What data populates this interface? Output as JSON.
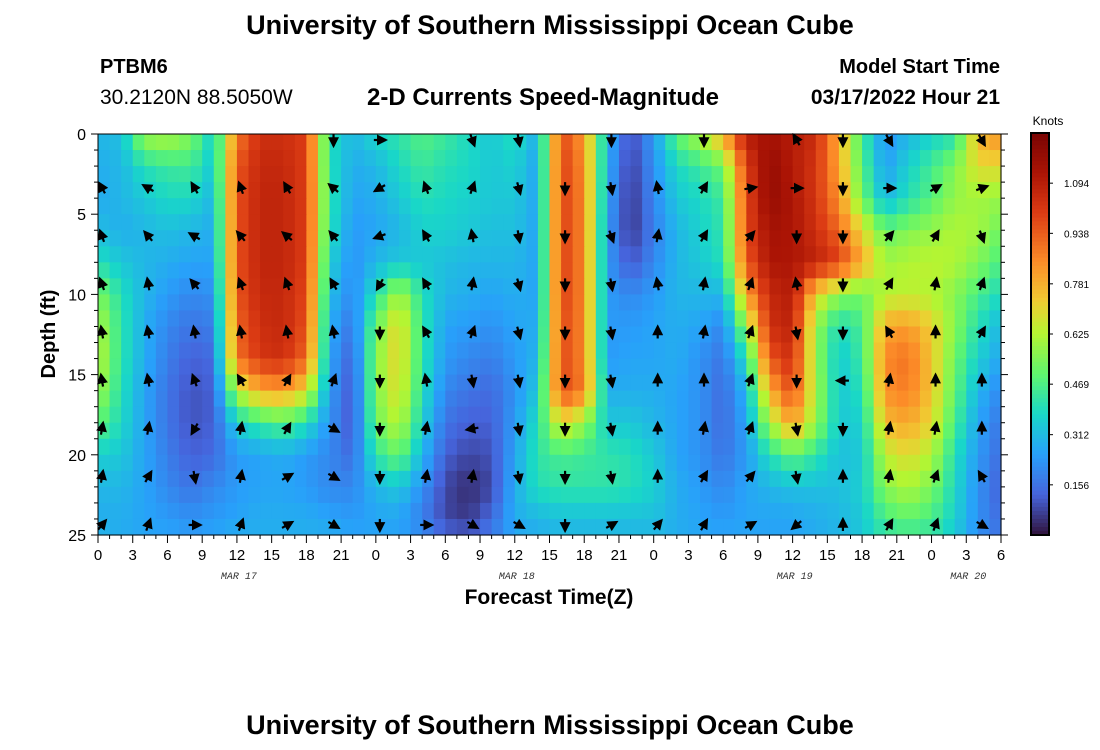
{
  "header": {
    "title": "University of Southern Mississippi Ocean Cube",
    "station_id": "PTBM6",
    "station_coords": "30.2120N  88.5050W",
    "subtitle": "2-D Currents Speed-Magnitude",
    "model_start_label": "Model Start Time",
    "model_start_value": "03/17/2022 Hour 21"
  },
  "footer": {
    "title": "University of Southern Mississippi Ocean Cube"
  },
  "chart_data": {
    "type": "heatmap",
    "title": "2-D Currents Speed-Magnitude",
    "xlabel": "Forecast Time(Z)",
    "ylabel": "Depth (ft)",
    "x_hours": [
      0,
      78
    ],
    "y_depth_ft": [
      0,
      25
    ],
    "y_ticks": [
      0,
      5,
      10,
      15,
      20,
      25
    ],
    "x_tick_labels": [
      "0",
      "3",
      "6",
      "9",
      "12",
      "15",
      "18",
      "21",
      "0",
      "3",
      "6",
      "9",
      "12",
      "15",
      "18",
      "21",
      "0",
      "3",
      "6",
      "9",
      "12",
      "15",
      "18",
      "21",
      "0",
      "3",
      "6"
    ],
    "date_labels": [
      {
        "label": "MAR 17",
        "hour": 12
      },
      {
        "label": "MAR 18",
        "hour": 36
      },
      {
        "label": "MAR 19",
        "hour": 60
      },
      {
        "label": "MAR 20",
        "hour": 75
      }
    ],
    "colorbar": {
      "unit": "Knots",
      "range": [
        0,
        1.25
      ],
      "ticks": [
        "0.156",
        "0.312",
        "0.469",
        "0.625",
        "0.781",
        "0.938",
        "1.094"
      ]
    },
    "speed_grid": {
      "depth_ft": [
        0,
        2,
        4,
        6,
        8,
        10,
        12,
        14,
        16,
        18,
        20,
        22,
        24,
        25
      ],
      "hours": [
        0,
        2,
        4,
        6,
        8,
        10,
        12,
        14,
        16,
        18,
        20,
        22,
        24,
        26,
        28,
        30,
        32,
        34,
        36,
        38,
        40,
        42,
        44,
        46,
        48,
        50,
        52,
        54,
        56,
        58,
        60,
        62,
        64,
        66,
        68,
        70,
        72,
        74,
        76,
        78
      ],
      "values": [
        [
          0.3,
          0.32,
          0.6,
          0.62,
          0.55,
          0.35,
          0.88,
          1.04,
          1.04,
          1.0,
          0.4,
          0.3,
          0.38,
          0.42,
          0.48,
          0.44,
          0.38,
          0.34,
          0.4,
          0.28,
          0.98,
          0.82,
          0.3,
          0.08,
          0.24,
          0.5,
          0.62,
          0.8,
          1.1,
          1.14,
          1.1,
          1.05,
          0.78,
          0.45,
          0.22,
          0.3,
          0.36,
          0.4,
          0.78,
          0.85
        ],
        [
          0.28,
          0.3,
          0.4,
          0.44,
          0.45,
          0.34,
          0.95,
          1.06,
          1.06,
          1.0,
          0.4,
          0.28,
          0.3,
          0.38,
          0.44,
          0.4,
          0.38,
          0.34,
          0.36,
          0.26,
          1.0,
          0.85,
          0.28,
          0.06,
          0.22,
          0.38,
          0.44,
          0.52,
          1.0,
          1.18,
          1.1,
          1.02,
          0.8,
          0.48,
          0.25,
          0.36,
          0.45,
          0.55,
          0.7,
          0.7
        ],
        [
          0.27,
          0.3,
          0.34,
          0.38,
          0.38,
          0.3,
          0.96,
          1.07,
          1.07,
          1.0,
          0.42,
          0.26,
          0.28,
          0.34,
          0.4,
          0.38,
          0.36,
          0.34,
          0.34,
          0.26,
          1.0,
          0.86,
          0.26,
          0.05,
          0.2,
          0.34,
          0.38,
          0.44,
          0.98,
          1.18,
          1.12,
          1.02,
          0.84,
          0.52,
          0.3,
          0.4,
          0.48,
          0.58,
          0.6,
          0.58
        ],
        [
          0.32,
          0.28,
          0.3,
          0.32,
          0.3,
          0.28,
          0.96,
          1.07,
          1.07,
          1.0,
          0.4,
          0.24,
          0.26,
          0.3,
          0.36,
          0.36,
          0.34,
          0.32,
          0.32,
          0.26,
          1.0,
          0.86,
          0.24,
          0.05,
          0.18,
          0.3,
          0.36,
          0.42,
          0.98,
          1.14,
          1.12,
          1.04,
          0.92,
          0.7,
          0.5,
          0.55,
          0.58,
          0.62,
          0.6,
          0.52
        ],
        [
          0.4,
          0.34,
          0.3,
          0.28,
          0.26,
          0.26,
          0.96,
          1.07,
          1.07,
          1.0,
          0.36,
          0.22,
          0.3,
          0.34,
          0.34,
          0.32,
          0.3,
          0.3,
          0.3,
          0.26,
          1.0,
          0.86,
          0.24,
          0.1,
          0.2,
          0.3,
          0.34,
          0.4,
          0.94,
          1.12,
          1.12,
          1.08,
          1.0,
          0.8,
          0.6,
          0.62,
          0.64,
          0.62,
          0.55,
          0.46
        ],
        [
          0.55,
          0.4,
          0.3,
          0.24,
          0.2,
          0.22,
          0.95,
          1.06,
          1.06,
          0.98,
          0.32,
          0.2,
          0.4,
          0.62,
          0.4,
          0.3,
          0.28,
          0.26,
          0.28,
          0.26,
          1.0,
          0.86,
          0.24,
          0.2,
          0.24,
          0.3,
          0.3,
          0.3,
          0.8,
          1.06,
          1.1,
          0.72,
          0.56,
          0.52,
          0.62,
          0.64,
          0.62,
          0.56,
          0.46,
          0.38
        ],
        [
          0.62,
          0.42,
          0.28,
          0.2,
          0.16,
          0.18,
          0.92,
          1.04,
          1.06,
          0.96,
          0.28,
          0.16,
          0.52,
          0.72,
          0.42,
          0.26,
          0.24,
          0.22,
          0.26,
          0.28,
          0.98,
          0.86,
          0.24,
          0.24,
          0.26,
          0.28,
          0.26,
          0.2,
          0.58,
          1.04,
          1.08,
          0.58,
          0.38,
          0.46,
          0.8,
          0.82,
          0.72,
          0.56,
          0.4,
          0.3
        ],
        [
          0.64,
          0.42,
          0.28,
          0.18,
          0.12,
          0.14,
          0.9,
          1.02,
          1.04,
          0.92,
          0.26,
          0.12,
          0.56,
          0.72,
          0.42,
          0.24,
          0.2,
          0.18,
          0.24,
          0.3,
          0.98,
          0.86,
          0.24,
          0.26,
          0.26,
          0.28,
          0.22,
          0.16,
          0.4,
          0.95,
          1.04,
          0.58,
          0.34,
          0.44,
          0.86,
          0.9,
          0.74,
          0.52,
          0.36,
          0.26
        ],
        [
          0.6,
          0.4,
          0.26,
          0.16,
          0.1,
          0.12,
          0.62,
          0.8,
          0.82,
          0.7,
          0.24,
          0.1,
          0.55,
          0.7,
          0.4,
          0.2,
          0.16,
          0.14,
          0.22,
          0.34,
          0.98,
          0.88,
          0.28,
          0.28,
          0.28,
          0.26,
          0.22,
          0.14,
          0.3,
          0.78,
          0.98,
          0.6,
          0.34,
          0.4,
          0.84,
          0.88,
          0.74,
          0.5,
          0.3,
          0.2
        ],
        [
          0.5,
          0.38,
          0.26,
          0.16,
          0.1,
          0.12,
          0.36,
          0.44,
          0.48,
          0.4,
          0.22,
          0.1,
          0.52,
          0.64,
          0.36,
          0.16,
          0.12,
          0.12,
          0.24,
          0.4,
          0.7,
          0.58,
          0.34,
          0.34,
          0.3,
          0.26,
          0.22,
          0.14,
          0.26,
          0.6,
          0.82,
          0.58,
          0.34,
          0.36,
          0.76,
          0.8,
          0.7,
          0.46,
          0.26,
          0.16
        ],
        [
          0.36,
          0.34,
          0.26,
          0.18,
          0.12,
          0.14,
          0.24,
          0.26,
          0.28,
          0.24,
          0.2,
          0.14,
          0.42,
          0.52,
          0.3,
          0.12,
          0.08,
          0.1,
          0.26,
          0.42,
          0.46,
          0.44,
          0.42,
          0.4,
          0.34,
          0.26,
          0.22,
          0.16,
          0.24,
          0.4,
          0.5,
          0.42,
          0.32,
          0.34,
          0.64,
          0.7,
          0.62,
          0.4,
          0.24,
          0.14
        ],
        [
          0.3,
          0.3,
          0.26,
          0.2,
          0.16,
          0.2,
          0.24,
          0.26,
          0.26,
          0.24,
          0.2,
          0.2,
          0.3,
          0.34,
          0.22,
          0.08,
          0.04,
          0.08,
          0.28,
          0.4,
          0.42,
          0.42,
          0.42,
          0.4,
          0.36,
          0.28,
          0.24,
          0.2,
          0.26,
          0.3,
          0.32,
          0.32,
          0.32,
          0.36,
          0.56,
          0.62,
          0.54,
          0.38,
          0.22,
          0.12
        ],
        [
          0.28,
          0.28,
          0.26,
          0.24,
          0.22,
          0.24,
          0.26,
          0.28,
          0.28,
          0.28,
          0.26,
          0.24,
          0.26,
          0.26,
          0.18,
          0.08,
          0.06,
          0.14,
          0.28,
          0.3,
          0.32,
          0.32,
          0.32,
          0.32,
          0.32,
          0.28,
          0.26,
          0.24,
          0.26,
          0.26,
          0.26,
          0.28,
          0.3,
          0.34,
          0.46,
          0.5,
          0.46,
          0.36,
          0.22,
          0.14
        ],
        [
          0.3,
          0.28,
          0.26,
          0.26,
          0.24,
          0.26,
          0.28,
          0.28,
          0.28,
          0.28,
          0.28,
          0.26,
          0.26,
          0.26,
          0.22,
          0.14,
          0.12,
          0.18,
          0.26,
          0.28,
          0.3,
          0.3,
          0.3,
          0.3,
          0.3,
          0.28,
          0.26,
          0.26,
          0.26,
          0.26,
          0.26,
          0.28,
          0.3,
          0.34,
          0.42,
          0.44,
          0.42,
          0.34,
          0.22,
          0.16
        ]
      ]
    },
    "vectors": {
      "hours": [
        0,
        4,
        8,
        12,
        16,
        20,
        24,
        28,
        32,
        36,
        40,
        44,
        48,
        52,
        56,
        60,
        64,
        68,
        72,
        76
      ],
      "depth_ft": [
        0,
        3,
        6,
        9,
        12,
        15,
        18,
        21,
        24
      ],
      "direction_deg": [
        [
          null,
          null,
          null,
          null,
          null,
          180,
          90,
          null,
          160,
          170,
          null,
          180,
          null,
          180,
          null,
          330,
          180,
          150,
          null,
          150
        ],
        [
          330,
          300,
          330,
          340,
          330,
          310,
          240,
          340,
          20,
          165,
          180,
          170,
          350,
          30,
          80,
          90,
          180,
          90,
          60,
          70
        ],
        [
          340,
          320,
          300,
          320,
          310,
          320,
          250,
          330,
          350,
          170,
          180,
          160,
          10,
          30,
          40,
          180,
          180,
          40,
          30,
          160
        ],
        [
          340,
          350,
          320,
          340,
          340,
          330,
          210,
          330,
          10,
          165,
          180,
          170,
          350,
          10,
          20,
          350,
          180,
          30,
          10,
          20
        ],
        [
          350,
          350,
          350,
          350,
          350,
          350,
          180,
          330,
          20,
          165,
          180,
          170,
          360,
          10,
          20,
          170,
          180,
          330,
          360,
          30
        ],
        [
          350,
          350,
          340,
          330,
          30,
          20,
          180,
          350,
          170,
          170,
          180,
          170,
          360,
          360,
          20,
          180,
          270,
          10,
          360,
          360
        ],
        [
          10,
          10,
          210,
          10,
          30,
          120,
          180,
          10,
          260,
          170,
          180,
          170,
          360,
          10,
          20,
          170,
          180,
          10,
          10,
          360
        ],
        [
          10,
          30,
          170,
          10,
          60,
          120,
          180,
          10,
          10,
          170,
          180,
          170,
          360,
          30,
          40,
          170,
          360,
          10,
          20,
          330
        ],
        [
          40,
          20,
          90,
          20,
          60,
          120,
          180,
          90,
          120,
          120,
          180,
          60,
          40,
          30,
          60,
          230,
          360,
          30,
          20,
          120
        ]
      ]
    }
  }
}
